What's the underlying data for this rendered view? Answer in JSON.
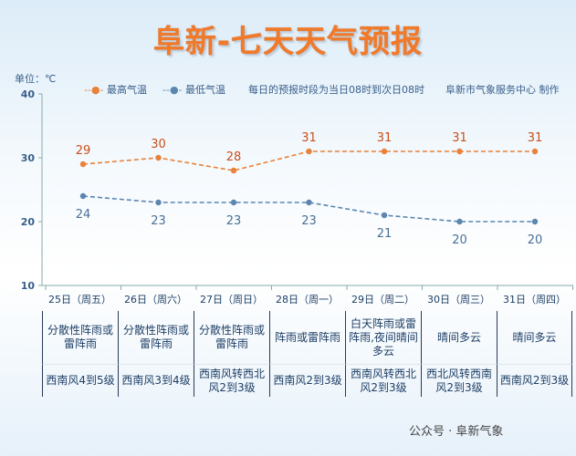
{
  "title": "阜新-七天天气预报",
  "unit": "单位：℃",
  "legend": {
    "high": "最高气温",
    "low": "最低气温",
    "note": "每日的预报时段为当日08时到次日08时",
    "source": "阜新市气象服务中心 制作"
  },
  "colors": {
    "high": "#e8823a",
    "low": "#5b86b0",
    "title": "#f07a2a"
  },
  "chart_data": {
    "type": "line",
    "categories": [
      "25日（周五）",
      "26日（周六）",
      "27日（周日）",
      "28日（周一）",
      "29日（周二）",
      "30日（周三）",
      "31日（周四）"
    ],
    "series": [
      {
        "name": "最高气温",
        "values": [
          29,
          30,
          28,
          31,
          31,
          31,
          31
        ]
      },
      {
        "name": "最低气温",
        "values": [
          24,
          23,
          23,
          23,
          21,
          20,
          20
        ]
      }
    ],
    "ylim": [
      10,
      40
    ],
    "yticks": [
      10,
      20,
      30,
      40
    ],
    "ylabel": "单位：℃",
    "grid": false,
    "legend": "top"
  },
  "weather": [
    "分散性阵雨或雷阵雨",
    "分散性阵雨或雷阵雨",
    "分散性阵雨或雷阵雨",
    "阵雨或雷阵雨",
    "白天阵雨或雷阵雨,夜间晴间多云",
    "晴间多云",
    "晴间多云"
  ],
  "wind": [
    "西南风4到5级",
    "西南风3到4级",
    "西南风转西北风2到3级",
    "西南风2到3级",
    "西南风转西北风2到3级",
    "西北风转西南风2到3级",
    "西南风2到3级"
  ],
  "watermark": "公众号 · 阜新气象"
}
